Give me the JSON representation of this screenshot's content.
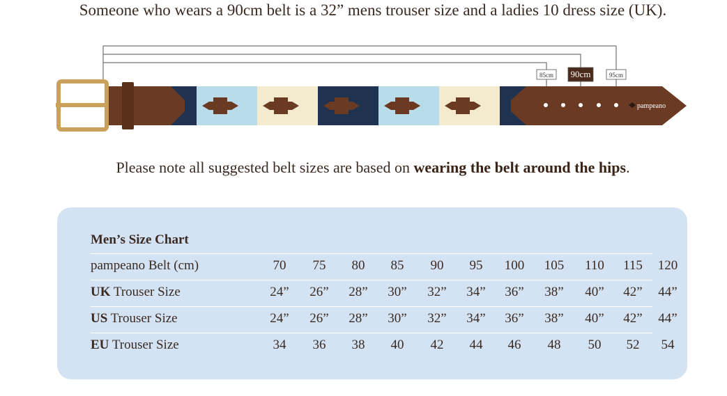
{
  "intro": "Someone who wears a 90cm belt is a 32” mens trouser size and a ladies 10 dress size (UK).",
  "belt": {
    "sizes": [
      "85cm",
      "90cm",
      "95cm"
    ],
    "brand": "pampeano"
  },
  "note": {
    "before": "Please note all suggested belt sizes are based on ",
    "bold": "wearing the belt around the hips",
    "after": "."
  },
  "table": {
    "title": "Men’s Size Chart",
    "rows": [
      {
        "label": "pampeano Belt (cm)",
        "values": [
          70,
          75,
          80,
          85,
          90,
          95,
          100,
          105,
          110,
          115,
          120
        ]
      },
      {
        "bold": "UK",
        "label": " Trouser Size",
        "values": [
          "24”",
          "26”",
          "28”",
          "30”",
          "32”",
          "34”",
          "36”",
          "38”",
          "40”",
          "42”",
          "44”"
        ]
      },
      {
        "bold": "US",
        "label": " Trouser Size",
        "values": [
          "24”",
          "26”",
          "28”",
          "30”",
          "32”",
          "34”",
          "36”",
          "38”",
          "40”",
          "42”",
          "44”"
        ]
      },
      {
        "bold": "EU",
        "label": " Trouser Size",
        "values": [
          34,
          36,
          38,
          40,
          42,
          44,
          46,
          48,
          50,
          52,
          54
        ]
      }
    ]
  }
}
